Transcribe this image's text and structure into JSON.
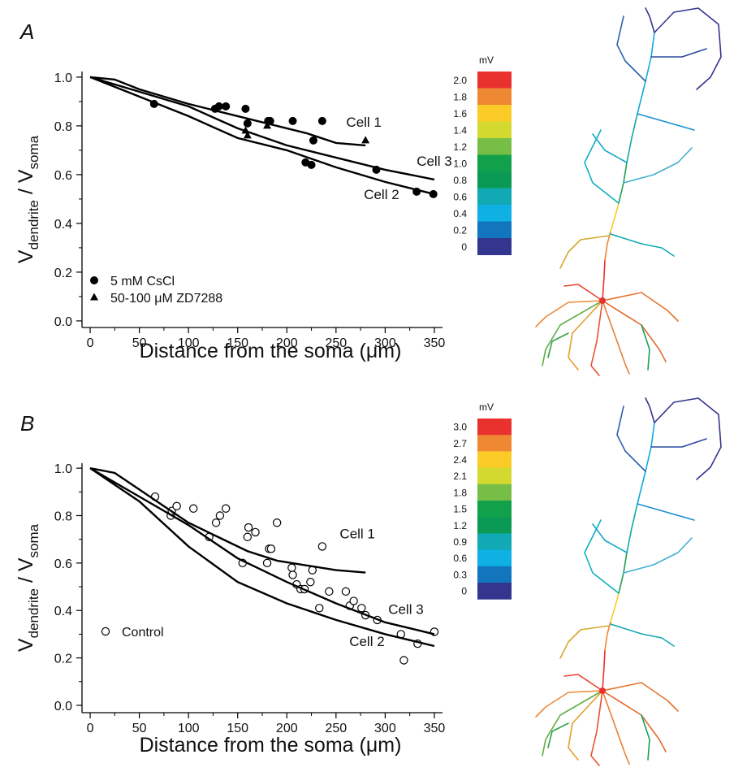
{
  "chart_data": [
    {
      "type": "scatter",
      "panel_label": "A",
      "xlabel": "Distance from the soma (μm)",
      "ylabel": [
        "V",
        "dendrite",
        " / V",
        "soma"
      ],
      "xlim": [
        -8.3,
        358.3
      ],
      "ylim": [
        -0.027,
        1.023
      ],
      "xticks": [
        0,
        50,
        100,
        150,
        200,
        250,
        300,
        350
      ],
      "xminorticks": [
        25,
        75,
        125,
        175,
        225,
        275,
        325
      ],
      "yticks": [
        {
          "value": 0,
          "label": "0.0"
        },
        0.2,
        0.4,
        0.6,
        0.8,
        {
          "value": 1,
          "label": "1.0"
        }
      ],
      "yminorticks": [
        0.1,
        0.3,
        0.5,
        0.7,
        0.9
      ],
      "series": [
        {
          "name": "5 mM CsCl",
          "marker": "filled-circle",
          "color": "#000000",
          "x": [
            65,
            127,
            131,
            138,
            158,
            160,
            181,
            183,
            206,
            219,
            225,
            227,
            236,
            291,
            332,
            349
          ],
          "values": [
            0.89,
            0.87,
            0.88,
            0.88,
            0.87,
            0.81,
            0.82,
            0.82,
            0.82,
            0.65,
            0.64,
            0.74,
            0.82,
            0.62,
            0.53,
            0.52
          ]
        },
        {
          "name": "50-100 μM ZD7288",
          "marker": "filled-triangle",
          "color": "#000000",
          "x": [
            158,
            160,
            180,
            280
          ],
          "values": [
            0.78,
            0.76,
            0.8,
            0.74
          ]
        },
        {
          "name": "Cell 1",
          "marker": "none",
          "color": "#000000",
          "x": [
            0,
            25,
            50,
            75,
            100,
            130,
            160,
            190,
            220,
            250,
            280
          ],
          "values": [
            1.0,
            0.99,
            0.95,
            0.92,
            0.89,
            0.86,
            0.83,
            0.8,
            0.77,
            0.73,
            0.72
          ]
        },
        {
          "name": "Cell 3",
          "marker": "none",
          "color": "#000000",
          "x": [
            0,
            50,
            100,
            150,
            200,
            250,
            300,
            350
          ],
          "values": [
            1.0,
            0.94,
            0.88,
            0.79,
            0.72,
            0.67,
            0.62,
            0.58
          ]
        },
        {
          "name": "Cell 2",
          "marker": "none",
          "color": "#000000",
          "x": [
            0,
            50,
            100,
            150,
            200,
            250,
            300,
            350
          ],
          "values": [
            1.0,
            0.92,
            0.84,
            0.75,
            0.7,
            0.63,
            0.57,
            0.52
          ]
        }
      ],
      "colorbar": {
        "unit": "mV",
        "ticks": [
          {
            "value": 2,
            "label": "2.0"
          },
          1.8,
          1.6,
          1.4,
          1.2,
          {
            "value": 1,
            "label": "1.0"
          },
          0.8,
          0.6,
          0.4,
          0.2,
          0
        ],
        "colors": [
          "#e9312e",
          "#ee8833",
          "#fbcc28",
          "#d3d92e",
          "#77be47",
          "#12a14b",
          "#0a9a55",
          "#11a9b4",
          "#0fb0e3",
          "#1276be",
          "#33358f"
        ]
      }
    },
    {
      "type": "scatter",
      "panel_label": "B",
      "xlabel": "Distance from the soma (μm)",
      "ylabel": [
        "V",
        "dendrite",
        " / V",
        "soma"
      ],
      "xlim": [
        -8.3,
        358.3
      ],
      "ylim": [
        -0.031,
        1.021
      ],
      "xticks": [
        0,
        50,
        100,
        150,
        200,
        250,
        300,
        350
      ],
      "xminorticks": [
        25,
        75,
        125,
        175,
        225,
        275,
        325
      ],
      "yticks": [
        {
          "value": 0,
          "label": "0.0"
        },
        0.2,
        0.4,
        0.6,
        0.8,
        {
          "value": 1,
          "label": "1.0"
        }
      ],
      "yminorticks": [
        0.1,
        0.3,
        0.5,
        0.7,
        0.9
      ],
      "series": [
        {
          "name": "Control",
          "marker": "open-circle",
          "color": "#000000",
          "x": [
            66,
            82,
            83,
            88,
            105,
            121,
            128,
            132,
            138,
            155,
            160,
            161,
            168,
            180,
            182,
            184,
            190,
            205,
            206,
            210,
            214,
            218,
            224,
            226,
            233,
            236,
            243,
            260,
            264,
            268,
            276,
            280,
            292,
            316,
            319,
            333,
            350
          ],
          "values": [
            0.88,
            0.8,
            0.82,
            0.84,
            0.83,
            0.71,
            0.77,
            0.8,
            0.83,
            0.6,
            0.71,
            0.75,
            0.73,
            0.6,
            0.66,
            0.66,
            0.77,
            0.58,
            0.55,
            0.51,
            0.49,
            0.49,
            0.52,
            0.57,
            0.41,
            0.67,
            0.48,
            0.48,
            0.42,
            0.44,
            0.41,
            0.38,
            0.36,
            0.3,
            0.19,
            0.26,
            0.31
          ]
        },
        {
          "name": "Cell 1",
          "marker": "none",
          "color": "#000000",
          "x": [
            0,
            25,
            50,
            75,
            100,
            130,
            160,
            190,
            220,
            250,
            280
          ],
          "values": [
            1.0,
            0.98,
            0.91,
            0.84,
            0.77,
            0.71,
            0.65,
            0.61,
            0.59,
            0.57,
            0.56
          ]
        },
        {
          "name": "Cell 3",
          "marker": "none",
          "color": "#000000",
          "x": [
            0,
            50,
            100,
            150,
            200,
            250,
            300,
            350
          ],
          "values": [
            1.0,
            0.88,
            0.76,
            0.62,
            0.52,
            0.43,
            0.35,
            0.3
          ]
        },
        {
          "name": "Cell 2",
          "marker": "none",
          "color": "#000000",
          "x": [
            0,
            50,
            100,
            150,
            200,
            250,
            300,
            350
          ],
          "values": [
            1.0,
            0.86,
            0.67,
            0.52,
            0.43,
            0.36,
            0.3,
            0.25
          ]
        }
      ],
      "colorbar": {
        "unit": "mV",
        "ticks": [
          {
            "value": 3,
            "label": "3.0"
          },
          2.7,
          2.4,
          2.1,
          1.8,
          1.5,
          1.2,
          0.9,
          0.6,
          0.3,
          0
        ],
        "colors": [
          "#e9312e",
          "#ee8833",
          "#fbcc28",
          "#d3d92e",
          "#77be47",
          "#12a14b",
          "#0a9a55",
          "#11a9b4",
          "#0fb0e3",
          "#1276be",
          "#33358f"
        ]
      }
    }
  ]
}
